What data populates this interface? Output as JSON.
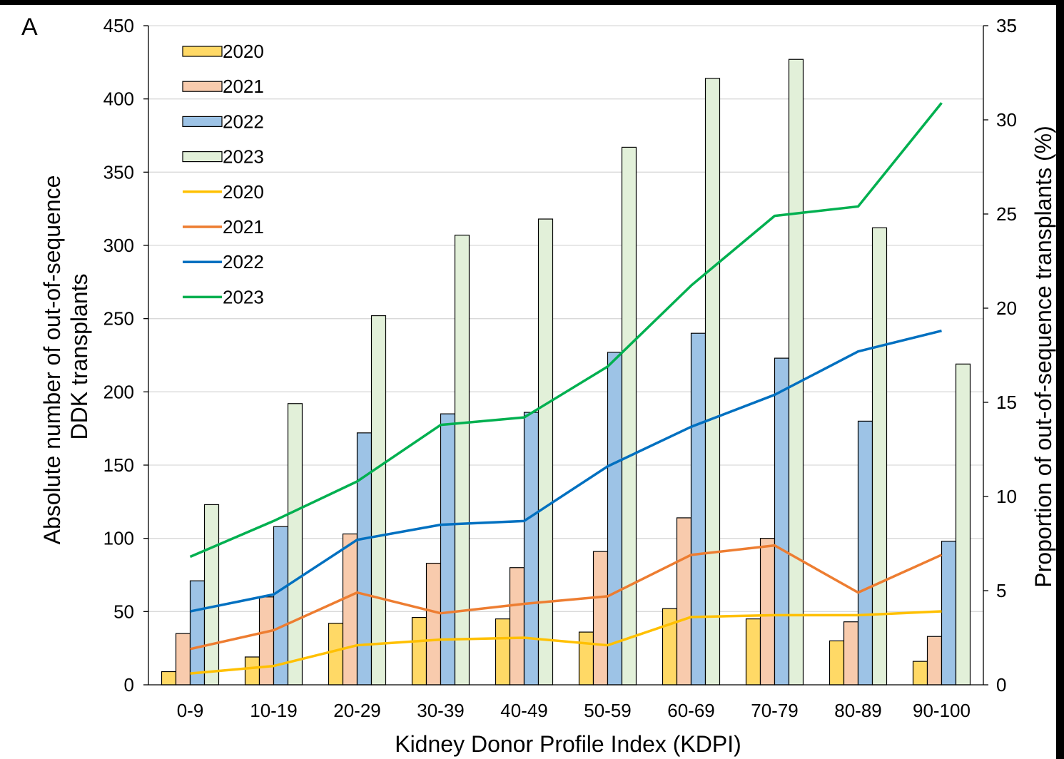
{
  "panel_label": "A",
  "chart_data": {
    "type": "bar",
    "xlabel": "Kidney Donor Profile Index (KDPI)",
    "ylabel_line1": "Absolute number of out-of-sequence",
    "ylabel_line2": "DDK transplants",
    "y2label": "Proportion of out-of-sequence transplants (%)",
    "ylim": [
      0,
      450
    ],
    "yticks": [
      0,
      50,
      100,
      150,
      200,
      250,
      300,
      350,
      400,
      450
    ],
    "y2lim": [
      0,
      35
    ],
    "y2ticks": [
      0,
      5,
      10,
      15,
      20,
      25,
      30,
      35
    ],
    "grid": true,
    "legend_position": "top-left",
    "categories": [
      "0-9",
      "10-19",
      "20-29",
      "30-39",
      "40-49",
      "50-59",
      "60-69",
      "70-79",
      "80-89",
      "90-100"
    ],
    "bar_series": [
      {
        "name": "2020",
        "color": "#FFD966",
        "values": [
          9,
          19,
          42,
          46,
          45,
          36,
          52,
          45,
          30,
          16
        ]
      },
      {
        "name": "2021",
        "color": "#F8CBAD",
        "values": [
          35,
          60,
          103,
          83,
          80,
          91,
          114,
          100,
          43,
          33
        ]
      },
      {
        "name": "2022",
        "color": "#9DC3E6",
        "values": [
          71,
          108,
          172,
          185,
          186,
          227,
          240,
          223,
          180,
          98
        ]
      },
      {
        "name": "2023",
        "color": "#E2F0D9",
        "values": [
          123,
          192,
          252,
          307,
          318,
          367,
          414,
          427,
          312,
          219
        ]
      }
    ],
    "line_series": [
      {
        "name": "2020",
        "axis": "right",
        "color": "#FFC000",
        "values": [
          0.6,
          1.0,
          2.1,
          2.4,
          2.5,
          2.1,
          3.6,
          3.7,
          3.7,
          3.9
        ]
      },
      {
        "name": "2021",
        "axis": "right",
        "color": "#ED7D31",
        "values": [
          1.9,
          2.9,
          4.9,
          3.8,
          4.3,
          4.7,
          6.9,
          7.4,
          4.9,
          6.9
        ]
      },
      {
        "name": "2022",
        "axis": "right",
        "color": "#0070C0",
        "values": [
          3.9,
          4.8,
          7.7,
          8.5,
          8.7,
          11.6,
          13.7,
          15.4,
          17.7,
          18.8
        ]
      },
      {
        "name": "2023",
        "axis": "right",
        "color": "#00B050",
        "values": [
          6.8,
          8.7,
          10.8,
          13.8,
          14.2,
          16.9,
          21.2,
          24.9,
          25.4,
          30.9
        ]
      }
    ]
  }
}
